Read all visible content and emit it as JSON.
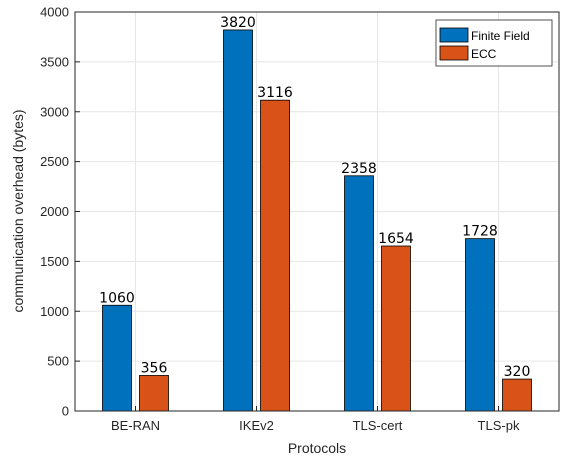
{
  "chart_data": {
    "type": "bar",
    "categories": [
      "BE-RAN",
      "IKEv2",
      "TLS-cert",
      "TLS-pk"
    ],
    "series": [
      {
        "name": "Finite Field",
        "values": [
          1060,
          3820,
          2358,
          1728
        ],
        "color": "#0072BD"
      },
      {
        "name": "ECC",
        "values": [
          356,
          3116,
          1654,
          320
        ],
        "color": "#D95319"
      }
    ],
    "data_labels": [
      [
        "1060",
        "3820",
        "2358",
        "1728"
      ],
      [
        "356",
        "3116",
        "1654",
        "320"
      ]
    ],
    "title": "",
    "xlabel": "Protocols",
    "ylabel": "communication overhead (bytes)",
    "ylim": [
      0,
      4000
    ],
    "yticks": [
      "0",
      "500",
      "1000",
      "1500",
      "2000",
      "2500",
      "3000",
      "3500",
      "4000"
    ],
    "grid": true,
    "legend_position": "top-right"
  }
}
